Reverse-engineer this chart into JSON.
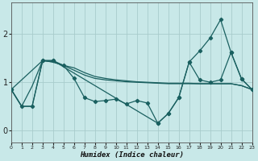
{
  "xlabel": "Humidex (Indice chaleur)",
  "background_color": "#c8e8e8",
  "grid_color": "#a8cccc",
  "line_color": "#1a6060",
  "xlim": [
    0,
    23
  ],
  "ylim": [
    -0.25,
    2.65
  ],
  "yticks": [
    0,
    1,
    2
  ],
  "xticks": [
    0,
    1,
    2,
    3,
    4,
    5,
    6,
    7,
    8,
    9,
    10,
    11,
    12,
    13,
    14,
    15,
    16,
    17,
    18,
    19,
    20,
    21,
    22,
    23
  ],
  "series": [
    {
      "x": [
        0,
        1,
        2,
        3,
        4,
        5,
        6,
        7,
        8,
        9,
        10,
        11,
        12,
        13,
        14,
        15,
        16,
        17,
        18,
        19,
        20,
        21,
        22,
        23
      ],
      "y": [
        0.85,
        0.5,
        0.5,
        1.45,
        1.45,
        1.35,
        1.08,
        0.68,
        0.6,
        0.62,
        0.65,
        0.55,
        0.62,
        0.57,
        0.15,
        0.35,
        0.68,
        1.42,
        1.05,
        1.0,
        1.05,
        1.62,
        1.07,
        0.85
      ],
      "has_markers": true
    },
    {
      "x": [
        0,
        1,
        2,
        3,
        4,
        5,
        6,
        7,
        8,
        9,
        10,
        11,
        12,
        13,
        14,
        15,
        16,
        17,
        18,
        19,
        20,
        21,
        22,
        23
      ],
      "y": [
        0.85,
        0.5,
        0.92,
        1.45,
        1.42,
        1.35,
        1.3,
        1.2,
        1.12,
        1.08,
        1.05,
        1.03,
        1.01,
        1.0,
        0.99,
        0.98,
        0.98,
        0.98,
        0.97,
        0.97,
        0.97,
        0.97,
        0.93,
        0.85
      ],
      "has_markers": false
    },
    {
      "x": [
        0,
        3,
        4,
        14,
        15,
        16,
        17,
        18,
        19,
        20,
        21,
        22,
        23
      ],
      "y": [
        0.85,
        1.45,
        1.45,
        0.15,
        0.35,
        0.68,
        1.42,
        1.65,
        1.92,
        2.3,
        1.62,
        1.07,
        0.85
      ],
      "has_markers": true
    },
    {
      "x": [
        0,
        1,
        2,
        3,
        4,
        5,
        6,
        7,
        8,
        9,
        10,
        11,
        12,
        13,
        14,
        15,
        16,
        17,
        18,
        19,
        20,
        21,
        22,
        23
      ],
      "y": [
        0.85,
        0.5,
        0.5,
        1.45,
        1.42,
        1.35,
        1.25,
        1.15,
        1.08,
        1.05,
        1.03,
        1.01,
        1.0,
        0.99,
        0.98,
        0.97,
        0.97,
        0.97,
        0.97,
        0.97,
        0.97,
        0.97,
        0.93,
        0.85
      ],
      "has_markers": false
    }
  ],
  "figsize": [
    3.2,
    2.0
  ],
  "dpi": 100
}
